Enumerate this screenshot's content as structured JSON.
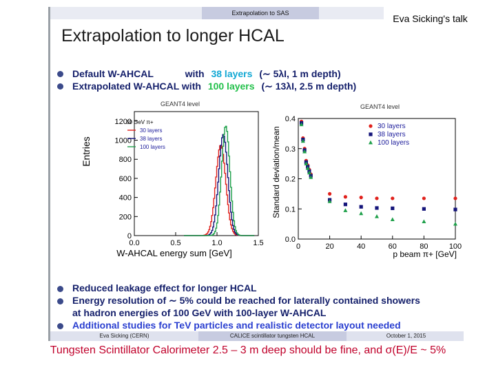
{
  "header": {
    "section": "Extrapolation to SAS",
    "talk_label": "Eva Sicking's talk"
  },
  "title": "Extrapolation to longer HCAL",
  "bullets_top": [
    {
      "a": "Default W-AHCAL",
      "b": "with",
      "c": "38 layers",
      "d": "(∼ 5λI, 1 m depth)"
    },
    {
      "a": "Extrapolated W-AHCAL with",
      "c": "100 layers",
      "d": "(∼ 13λI, 2.5 m depth)"
    }
  ],
  "bullets_bottom": [
    "Reduced leakage effect for longer HCAL",
    "Energy resolution of ∼ 5% could be reached for laterally contained showers",
    "at hadron energies of 100 GeV with 100-layer W-AHCAL",
    "Additional studies for TeV particles and realistic detector layout needed"
  ],
  "footer": {
    "author": "Eva Sicking (CERN)",
    "project": "CALICE scintillator tungsten HCAL",
    "date": "October 1, 2015"
  },
  "caption": "Tungsten Scintillator Calorimeter 2.5 – 3 m deep should be fine, and σ(E)/E ~ 5%",
  "colors": {
    "red": "#e0201b",
    "navy": "#14147a",
    "green": "#1ea04a",
    "black": "#111111"
  },
  "chart_data": [
    {
      "type": "line",
      "tag": "GEANT4 level",
      "ylabel": "Entries",
      "xlabel": "W-AHCAL energy sum [GeV]",
      "xlim": [
        0,
        1.5
      ],
      "ylim": [
        0,
        1300
      ],
      "xticks": [
        "0.0",
        "0.5",
        "1.0",
        "1.5"
      ],
      "yticks": [
        "0",
        "200",
        "400",
        "600",
        "800",
        "1000",
        "1200"
      ],
      "legend_title": "50 GeV π+",
      "series": [
        {
          "name": "30 layers",
          "color": "red",
          "peak_x": 1.04,
          "peak_y": 950,
          "sigma": 0.06
        },
        {
          "name": "38 layers",
          "color": "navy",
          "peak_x": 1.07,
          "peak_y": 1060,
          "sigma": 0.055
        },
        {
          "name": "100 layers",
          "color": "green",
          "peak_x": 1.1,
          "peak_y": 1150,
          "sigma": 0.05
        }
      ]
    },
    {
      "type": "scatter",
      "tag": "GEANT4 level",
      "ylabel": "Standard deviation/mean",
      "xlabel": "p beam π+ [GeV]",
      "xlim": [
        0,
        100
      ],
      "ylim": [
        0,
        0.4
      ],
      "xticks": [
        "0",
        "20",
        "40",
        "60",
        "80",
        "100"
      ],
      "yticks": [
        "0.0",
        "0.1",
        "0.2",
        "0.3",
        "0.4"
      ],
      "x": [
        2,
        3,
        4,
        5,
        6,
        7,
        8,
        20,
        30,
        40,
        50,
        60,
        80,
        100
      ],
      "series": [
        {
          "name": "30 layers",
          "color": "red",
          "marker": "circle",
          "values": [
            0.39,
            0.335,
            0.3,
            0.26,
            0.245,
            0.23,
            0.215,
            0.15,
            0.14,
            0.138,
            0.135,
            0.135,
            0.135,
            0.135
          ]
        },
        {
          "name": "38 layers",
          "color": "navy",
          "marker": "square",
          "values": [
            0.385,
            0.33,
            0.295,
            0.255,
            0.24,
            0.225,
            0.21,
            0.13,
            0.115,
            0.107,
            0.103,
            0.102,
            0.1,
            0.098
          ]
        },
        {
          "name": "100 layers",
          "color": "green",
          "marker": "triangle",
          "values": [
            0.38,
            0.325,
            0.29,
            0.25,
            0.235,
            0.22,
            0.205,
            0.125,
            0.095,
            0.085,
            0.075,
            0.065,
            0.058,
            0.05
          ]
        }
      ]
    }
  ]
}
